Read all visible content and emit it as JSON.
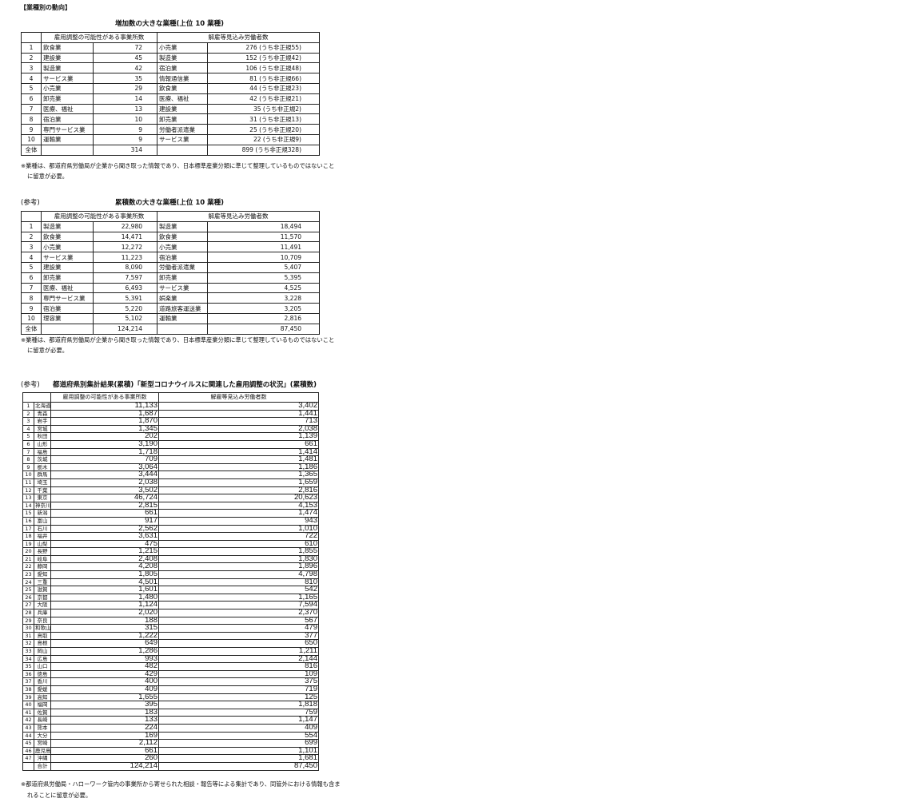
{
  "section_title": "【業種別の動向】",
  "table1": {
    "caption": "増加数の大きな業種(上位 10 業種)",
    "header1": "雇用調整の可能性がある事業所数",
    "header2": "解雇等見込み労働者数",
    "rows": [
      {
        "rank": "1",
        "ind1": "飲食業",
        "val1": "72",
        "ind2": "小売業",
        "val2": "276 (うち非正規55)"
      },
      {
        "rank": "2",
        "ind1": "建設業",
        "val1": "45",
        "ind2": "製造業",
        "val2": "152 (うち非正規42)"
      },
      {
        "rank": "3",
        "ind1": "製造業",
        "val1": "42",
        "ind2": "宿泊業",
        "val2": "106 (うち非正規48)"
      },
      {
        "rank": "4",
        "ind1": "サービス業",
        "val1": "35",
        "ind2": "情報通信業",
        "val2": "81 (うち非正規66)"
      },
      {
        "rank": "5",
        "ind1": "小売業",
        "val1": "29",
        "ind2": "飲食業",
        "val2": "44 (うち非正規23)"
      },
      {
        "rank": "6",
        "ind1": "卸売業",
        "val1": "14",
        "ind2": "医療、福祉",
        "val2": "42 (うち非正規21)"
      },
      {
        "rank": "7",
        "ind1": "医療、福祉",
        "val1": "13",
        "ind2": "建設業",
        "val2": "35 (うち非正規2)"
      },
      {
        "rank": "8",
        "ind1": "宿泊業",
        "val1": "10",
        "ind2": "卸売業",
        "val2": "31 (うち非正規13)"
      },
      {
        "rank": "9",
        "ind1": "専門サービス業",
        "val1": "9",
        "ind2": "労働者派遣業",
        "val2": "25 (うち非正規20)"
      },
      {
        "rank": "10",
        "ind1": "運輸業",
        "val1": "9",
        "ind2": "サービス業",
        "val2": "22 (うち非正規9)"
      }
    ],
    "total": {
      "label": "全体",
      "val1": "314",
      "val2": "899 (うち非正規328)"
    },
    "note1": "※業種は、都道府県労働局が企業から聞き取った情報であり、日本標準産業分類に準じて整理しているものではないこと",
    "note2": "に留意が必要。"
  },
  "table2": {
    "ref_label": "(参考)",
    "caption": "累積数の大きな業種(上位 10 業種)",
    "header1": "雇用調整の可能性がある事業所数",
    "header2": "解雇等見込み労働者数",
    "rows": [
      {
        "rank": "1",
        "ind1": "製造業",
        "val1": "22,980",
        "ind2": "製造業",
        "val2": "18,494"
      },
      {
        "rank": "2",
        "ind1": "飲食業",
        "val1": "14,471",
        "ind2": "飲食業",
        "val2": "11,570"
      },
      {
        "rank": "3",
        "ind1": "小売業",
        "val1": "12,272",
        "ind2": "小売業",
        "val2": "11,491"
      },
      {
        "rank": "4",
        "ind1": "サービス業",
        "val1": "11,223",
        "ind2": "宿泊業",
        "val2": "10,709"
      },
      {
        "rank": "5",
        "ind1": "建設業",
        "val1": "8,090",
        "ind2": "労働者派遣業",
        "val2": "5,407"
      },
      {
        "rank": "6",
        "ind1": "卸売業",
        "val1": "7,597",
        "ind2": "卸売業",
        "val2": "5,395"
      },
      {
        "rank": "7",
        "ind1": "医療、福祉",
        "val1": "6,493",
        "ind2": "サービス業",
        "val2": "4,525"
      },
      {
        "rank": "8",
        "ind1": "専門サービス業",
        "val1": "5,391",
        "ind2": "娯楽業",
        "val2": "3,228"
      },
      {
        "rank": "9",
        "ind1": "宿泊業",
        "val1": "5,220",
        "ind2": "道路旅客運送業",
        "val2": "3,205"
      },
      {
        "rank": "10",
        "ind1": "理容業",
        "val1": "5,102",
        "ind2": "運輸業",
        "val2": "2,816"
      }
    ],
    "total": {
      "label": "全体",
      "val1": "124,214",
      "val2": "87,450"
    },
    "note1": "※業種は、都道府県労働局が企業から聞き取った情報であり、日本標準産業分類に準じて整理しているものではないこと",
    "note2": "に留意が必要。"
  },
  "table3": {
    "ref_label": "(参考)",
    "caption": "都道府県別集計結果(累積)「新型コロナウイルスに関連した雇用調整の状況」(累積数)",
    "header1": "雇用調整の可能性がある事業所数",
    "header2": "解雇等見込み労働者数",
    "rows": [
      {
        "no": "1",
        "pref": "北海道",
        "v1": "11,133",
        "v2": "3,402"
      },
      {
        "no": "2",
        "pref": "青森",
        "v1": "1,687",
        "v2": "1,441"
      },
      {
        "no": "3",
        "pref": "岩手",
        "v1": "1,870",
        "v2": "713"
      },
      {
        "no": "4",
        "pref": "宮城",
        "v1": "1,345",
        "v2": "2,038"
      },
      {
        "no": "5",
        "pref": "秋田",
        "v1": "202",
        "v2": "1,139"
      },
      {
        "no": "6",
        "pref": "山形",
        "v1": "3,190",
        "v2": "661"
      },
      {
        "no": "7",
        "pref": "福島",
        "v1": "1,718",
        "v2": "1,414"
      },
      {
        "no": "8",
        "pref": "茨城",
        "v1": "709",
        "v2": "1,481"
      },
      {
        "no": "9",
        "pref": "栃木",
        "v1": "3,064",
        "v2": "1,186"
      },
      {
        "no": "10",
        "pref": "群馬",
        "v1": "3,444",
        "v2": "1,365"
      },
      {
        "no": "11",
        "pref": "埼玉",
        "v1": "2,038",
        "v2": "1,659"
      },
      {
        "no": "12",
        "pref": "千葉",
        "v1": "3,502",
        "v2": "2,816"
      },
      {
        "no": "13",
        "pref": "東京",
        "v1": "46,724",
        "v2": "20,623"
      },
      {
        "no": "14",
        "pref": "神奈川",
        "v1": "2,815",
        "v2": "4,153"
      },
      {
        "no": "15",
        "pref": "新潟",
        "v1": "661",
        "v2": "1,474"
      },
      {
        "no": "16",
        "pref": "富山",
        "v1": "917",
        "v2": "943"
      },
      {
        "no": "17",
        "pref": "石川",
        "v1": "2,562",
        "v2": "1,010"
      },
      {
        "no": "18",
        "pref": "福井",
        "v1": "3,631",
        "v2": "722"
      },
      {
        "no": "19",
        "pref": "山梨",
        "v1": "475",
        "v2": "610"
      },
      {
        "no": "20",
        "pref": "長野",
        "v1": "1,215",
        "v2": "1,855"
      },
      {
        "no": "21",
        "pref": "岐阜",
        "v1": "2,408",
        "v2": "1,830"
      },
      {
        "no": "22",
        "pref": "静岡",
        "v1": "4,208",
        "v2": "1,896"
      },
      {
        "no": "23",
        "pref": "愛知",
        "v1": "1,805",
        "v2": "4,798"
      },
      {
        "no": "24",
        "pref": "三重",
        "v1": "4,501",
        "v2": "810"
      },
      {
        "no": "25",
        "pref": "滋賀",
        "v1": "1,601",
        "v2": "542"
      },
      {
        "no": "26",
        "pref": "京都",
        "v1": "1,480",
        "v2": "1,165"
      },
      {
        "no": "27",
        "pref": "大阪",
        "v1": "1,124",
        "v2": "7,594"
      },
      {
        "no": "28",
        "pref": "兵庫",
        "v1": "2,020",
        "v2": "2,370"
      },
      {
        "no": "29",
        "pref": "奈良",
        "v1": "188",
        "v2": "567"
      },
      {
        "no": "30",
        "pref": "和歌山",
        "v1": "315",
        "v2": "479"
      },
      {
        "no": "31",
        "pref": "鳥取",
        "v1": "1,222",
        "v2": "377"
      },
      {
        "no": "32",
        "pref": "島根",
        "v1": "649",
        "v2": "650"
      },
      {
        "no": "33",
        "pref": "岡山",
        "v1": "1,286",
        "v2": "1,211"
      },
      {
        "no": "34",
        "pref": "広島",
        "v1": "993",
        "v2": "2,144"
      },
      {
        "no": "35",
        "pref": "山口",
        "v1": "482",
        "v2": "816"
      },
      {
        "no": "36",
        "pref": "徳島",
        "v1": "429",
        "v2": "109"
      },
      {
        "no": "37",
        "pref": "香川",
        "v1": "400",
        "v2": "375"
      },
      {
        "no": "38",
        "pref": "愛媛",
        "v1": "409",
        "v2": "719"
      },
      {
        "no": "39",
        "pref": "高知",
        "v1": "1,655",
        "v2": "125"
      },
      {
        "no": "40",
        "pref": "福岡",
        "v1": "395",
        "v2": "1,818"
      },
      {
        "no": "41",
        "pref": "佐賀",
        "v1": "183",
        "v2": "759"
      },
      {
        "no": "42",
        "pref": "長崎",
        "v1": "133",
        "v2": "1,147"
      },
      {
        "no": "43",
        "pref": "熊本",
        "v1": "224",
        "v2": "409"
      },
      {
        "no": "44",
        "pref": "大分",
        "v1": "169",
        "v2": "554"
      },
      {
        "no": "45",
        "pref": "宮崎",
        "v1": "2,112",
        "v2": "699"
      },
      {
        "no": "46",
        "pref": "鹿児島",
        "v1": "661",
        "v2": "1,101"
      },
      {
        "no": "47",
        "pref": "沖縄",
        "v1": "260",
        "v2": "1,681"
      }
    ],
    "total": {
      "label": "合計",
      "v1": "124,214",
      "v2": "87,450"
    },
    "note1": "※都道府県労働局・ハローワーク管内の事業所から寄せられた相談・報告等による集計であり、同管外における情報も含ま",
    "note2": "れることに留意が必要。"
  }
}
